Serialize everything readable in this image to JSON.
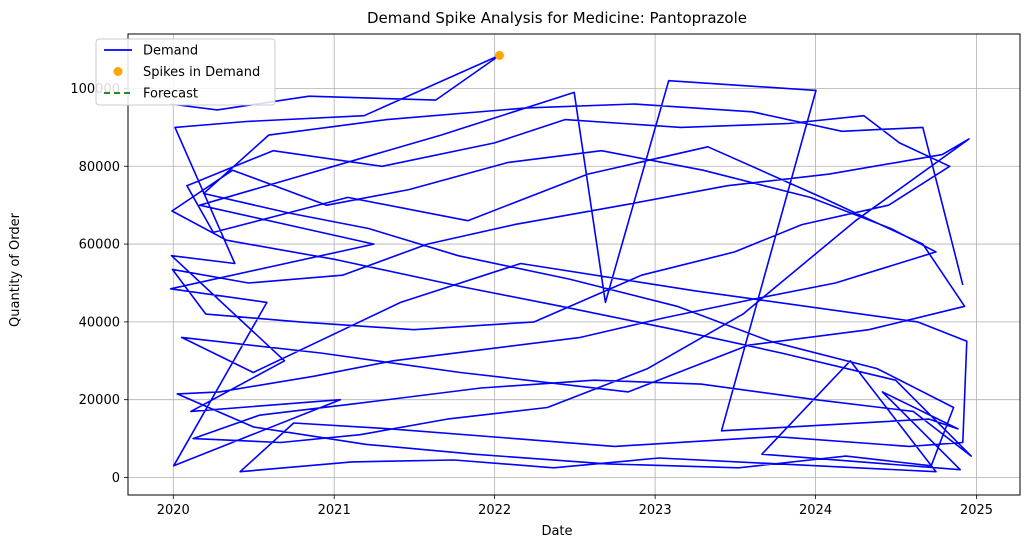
{
  "chart_data": {
    "type": "line",
    "title": "Demand Spike Analysis for Medicine: Pantoprazole",
    "xlabel": "Date",
    "ylabel": "Quantity of Order",
    "x_axis_type": "date",
    "xlim": [
      "2019-09-20",
      "2025-04-10"
    ],
    "ylim": [
      -4500,
      114000
    ],
    "xticks": [
      "2020-01-01",
      "2021-01-01",
      "2022-01-01",
      "2023-01-01",
      "2024-01-01",
      "2025-01-01"
    ],
    "xtick_labels": [
      "2020",
      "2021",
      "2022",
      "2023",
      "2024",
      "2025"
    ],
    "yticks": [
      0,
      20000,
      40000,
      60000,
      80000,
      100000
    ],
    "ytick_labels": [
      "0",
      "20000",
      "40000",
      "60000",
      "80000",
      "100000"
    ],
    "grid": true,
    "legend_position": "upper-left",
    "series": [
      {
        "name": "Demand",
        "kind": "line",
        "color": "#0000ff",
        "points": [
          [
            "2019-12-25",
            96000
          ],
          [
            "2020-04-10",
            94500
          ],
          [
            "2020-11-05",
            98000
          ],
          [
            "2021-08-20",
            97000
          ],
          [
            "2022-01-12",
            108500
          ],
          [
            "2021-03-10",
            93000
          ],
          [
            "2020-06-15",
            91500
          ],
          [
            "2020-01-05",
            90000
          ],
          [
            "2020-05-20",
            55000
          ],
          [
            "2019-12-28",
            57000
          ],
          [
            "2020-09-10",
            30000
          ],
          [
            "2020-02-10",
            17000
          ],
          [
            "2021-01-15",
            20000
          ],
          [
            "2020-01-02",
            3000
          ],
          [
            "2020-08-01",
            45000
          ],
          [
            "2019-12-26",
            48500
          ],
          [
            "2021-04-01",
            60000
          ],
          [
            "2020-03-01",
            70000
          ],
          [
            "2021-09-01",
            88000
          ],
          [
            "2022-07-01",
            99000
          ],
          [
            "2022-09-10",
            45000
          ],
          [
            "2023-02-01",
            102000
          ],
          [
            "2024-01-02",
            99500
          ],
          [
            "2023-06-01",
            12000
          ],
          [
            "2024-09-15",
            15000
          ],
          [
            "2024-11-20",
            12500
          ],
          [
            "2024-06-01",
            22000
          ],
          [
            "2024-11-25",
            2000
          ],
          [
            "2023-09-01",
            6000
          ],
          [
            "2024-03-20",
            30000
          ],
          [
            "2024-10-01",
            1500
          ],
          [
            "2023-01-10",
            5000
          ],
          [
            "2022-05-15",
            2500
          ],
          [
            "2021-10-01",
            4500
          ],
          [
            "2021-02-10",
            4000
          ],
          [
            "2020-06-01",
            1500
          ],
          [
            "2020-10-01",
            14000
          ],
          [
            "2021-05-10",
            12500
          ],
          [
            "2022-10-01",
            8000
          ],
          [
            "2023-10-01",
            10500
          ],
          [
            "2024-08-01",
            8000
          ],
          [
            "2024-12-01",
            9000
          ],
          [
            "2024-12-10",
            35000
          ],
          [
            "2024-08-20",
            40000
          ],
          [
            "2023-04-01",
            48000
          ],
          [
            "2022-03-01",
            55000
          ],
          [
            "2021-06-01",
            45000
          ],
          [
            "2020-07-01",
            27000
          ],
          [
            "2020-01-20",
            36000
          ],
          [
            "2020-12-01",
            32000
          ],
          [
            "2021-10-15",
            27000
          ],
          [
            "2022-11-01",
            22000
          ],
          [
            "2023-08-01",
            34000
          ],
          [
            "2024-05-01",
            38000
          ],
          [
            "2024-12-05",
            44000
          ],
          [
            "2024-09-01",
            60000
          ],
          [
            "2024-01-15",
            72000
          ],
          [
            "2023-05-01",
            85000
          ],
          [
            "2022-08-01",
            78000
          ],
          [
            "2021-11-01",
            66000
          ],
          [
            "2021-02-01",
            72000
          ],
          [
            "2020-04-01",
            63000
          ],
          [
            "2020-02-01",
            75000
          ],
          [
            "2020-08-15",
            84000
          ],
          [
            "2021-04-20",
            80000
          ],
          [
            "2022-01-01",
            86000
          ],
          [
            "2022-06-10",
            92000
          ],
          [
            "2023-03-01",
            90000
          ],
          [
            "2023-11-01",
            91000
          ],
          [
            "2024-04-20",
            93000
          ],
          [
            "2024-07-10",
            86000
          ],
          [
            "2024-11-01",
            80000
          ],
          [
            "2024-06-15",
            70000
          ],
          [
            "2023-12-01",
            65000
          ],
          [
            "2023-07-01",
            58000
          ],
          [
            "2022-12-01",
            52000
          ],
          [
            "2022-04-01",
            40000
          ],
          [
            "2021-07-01",
            38000
          ],
          [
            "2020-10-15",
            40000
          ],
          [
            "2020-03-15",
            42000
          ],
          [
            "2019-12-30",
            53500
          ],
          [
            "2020-06-20",
            50000
          ],
          [
            "2021-01-20",
            52000
          ],
          [
            "2021-08-01",
            60000
          ],
          [
            "2022-02-15",
            65000
          ],
          [
            "2022-10-20",
            70000
          ],
          [
            "2023-06-15",
            75000
          ],
          [
            "2024-02-01",
            78000
          ],
          [
            "2024-10-15",
            83000
          ],
          [
            "2024-12-15",
            87000
          ],
          [
            "2024-04-01",
            66000
          ],
          [
            "2023-07-20",
            42000
          ],
          [
            "2022-12-15",
            28000
          ],
          [
            "2022-05-01",
            18000
          ],
          [
            "2021-09-15",
            15000
          ],
          [
            "2021-03-01",
            11000
          ],
          [
            "2020-09-01",
            9000
          ],
          [
            "2020-02-15",
            10000
          ],
          [
            "2020-07-15",
            16000
          ],
          [
            "2021-02-20",
            19000
          ],
          [
            "2021-12-01",
            23000
          ],
          [
            "2022-08-15",
            25000
          ],
          [
            "2023-04-15",
            24000
          ],
          [
            "2024-01-01",
            20000
          ],
          [
            "2024-08-10",
            17000
          ],
          [
            "2024-12-20",
            5500
          ],
          [
            "2024-07-01",
            25000
          ],
          [
            "2023-10-15",
            32000
          ],
          [
            "2023-02-15",
            38000
          ],
          [
            "2022-06-01",
            44000
          ],
          [
            "2021-10-20",
            49000
          ],
          [
            "2021-01-05",
            56000
          ],
          [
            "2020-05-01",
            61000
          ],
          [
            "2019-12-29",
            68500
          ],
          [
            "2020-05-15",
            79000
          ],
          [
            "2020-12-15",
            70000
          ],
          [
            "2021-06-20",
            74000
          ],
          [
            "2022-02-01",
            81000
          ],
          [
            "2022-09-01",
            84000
          ],
          [
            "2023-04-20",
            79000
          ],
          [
            "2023-12-20",
            72000
          ],
          [
            "2024-06-20",
            64000
          ],
          [
            "2024-10-01",
            58000
          ],
          [
            "2024-02-15",
            50000
          ],
          [
            "2023-08-20",
            46000
          ],
          [
            "2023-01-20",
            41000
          ],
          [
            "2022-07-15",
            36000
          ],
          [
            "2021-12-15",
            33000
          ],
          [
            "2021-05-15",
            30000
          ],
          [
            "2020-11-15",
            26000
          ],
          [
            "2020-04-15",
            22000
          ],
          [
            "2020-01-10",
            21500
          ],
          [
            "2020-07-01",
            13000
          ],
          [
            "2021-03-15",
            8500
          ],
          [
            "2021-11-15",
            6000
          ],
          [
            "2022-09-15",
            3500
          ],
          [
            "2023-07-10",
            2500
          ],
          [
            "2024-03-10",
            5500
          ],
          [
            "2024-09-20",
            3000
          ],
          [
            "2024-11-10",
            18000
          ],
          [
            "2024-05-20",
            28000
          ],
          [
            "2023-09-20",
            35000
          ],
          [
            "2023-02-20",
            44000
          ],
          [
            "2022-06-20",
            51000
          ],
          [
            "2021-10-10",
            57000
          ],
          [
            "2021-03-20",
            64000
          ],
          [
            "2020-09-20",
            68000
          ],
          [
            "2020-03-10",
            73000
          ],
          [
            "2020-08-05",
            88000
          ],
          [
            "2021-05-01",
            92000
          ],
          [
            "2022-03-15",
            95000
          ],
          [
            "2022-11-15",
            96000
          ],
          [
            "2023-08-10",
            94000
          ],
          [
            "2024-03-01",
            89000
          ],
          [
            "2024-09-01",
            90000
          ],
          [
            "2024-12-01",
            49500
          ]
        ]
      },
      {
        "name": "Spikes in Demand",
        "kind": "scatter",
        "color": "#ffa500",
        "points": [
          [
            "2022-01-12",
            108500
          ]
        ]
      },
      {
        "name": "Forecast",
        "kind": "line",
        "style": "dashed",
        "color": "#008000",
        "points": []
      }
    ]
  }
}
